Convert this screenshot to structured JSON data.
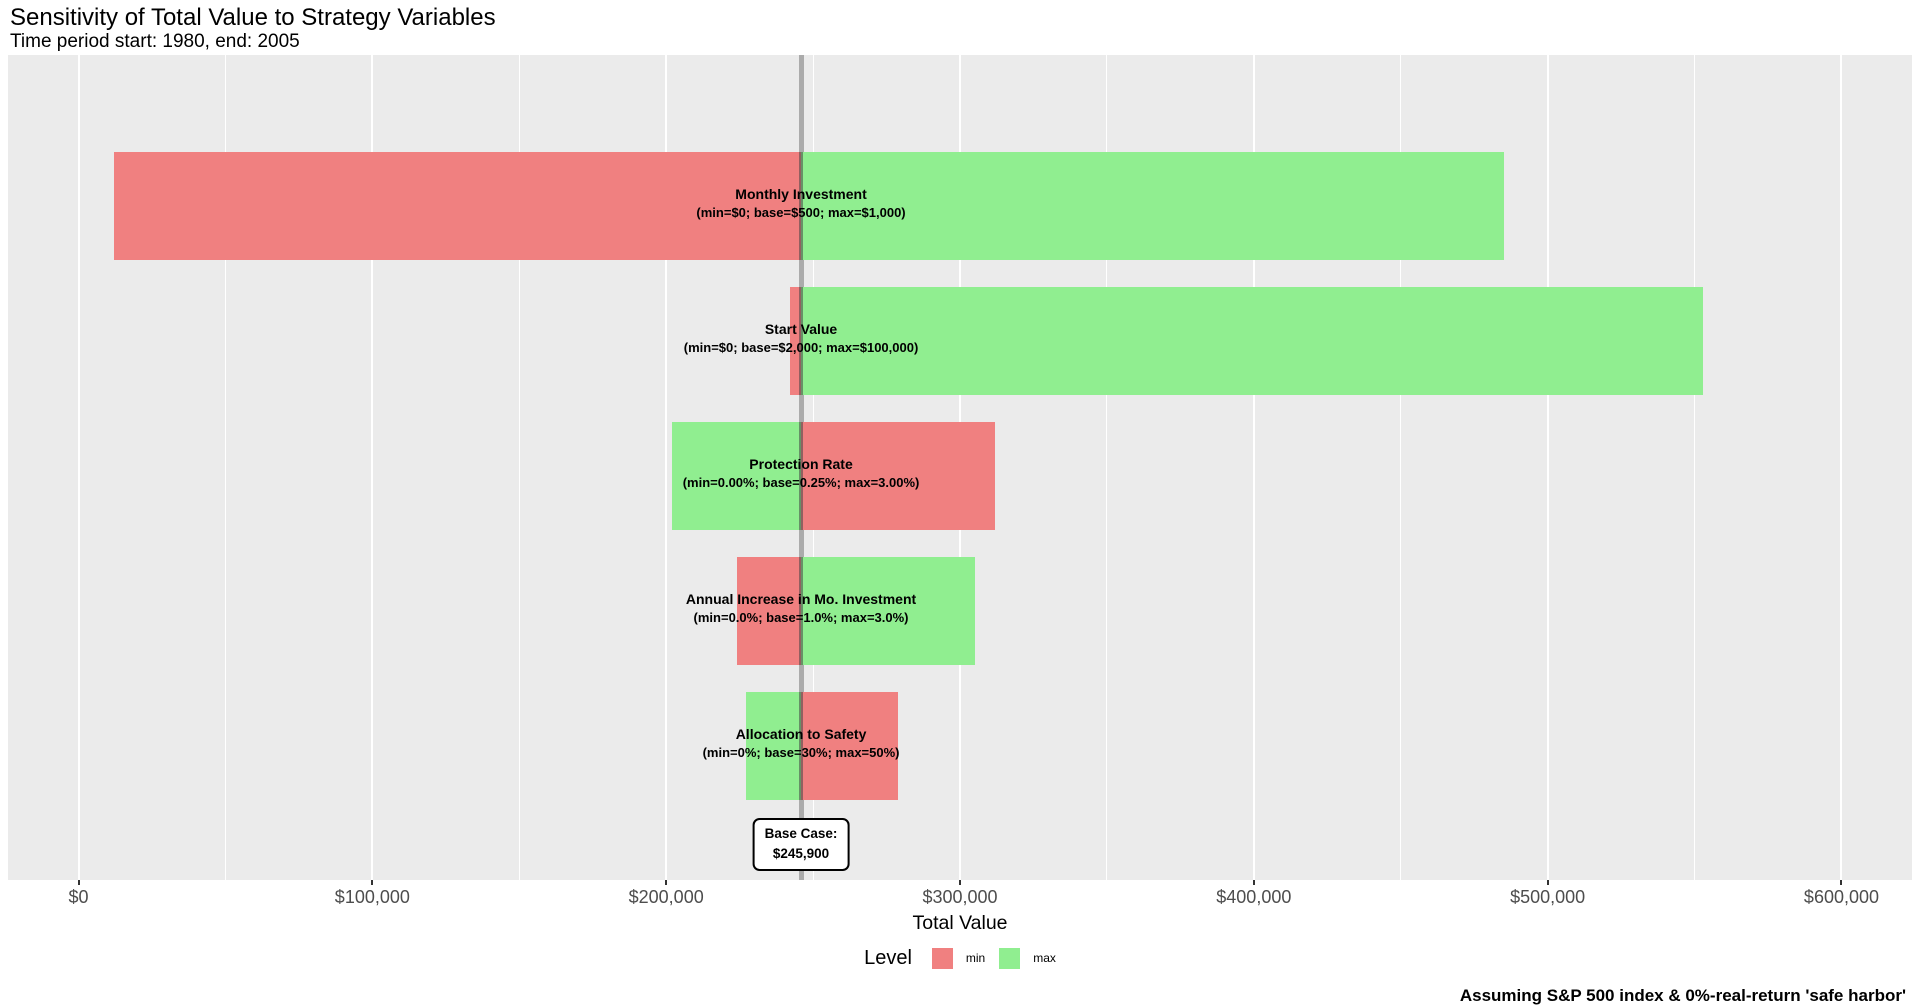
{
  "header": {
    "title": "Sensitivity of Total Value to Strategy Variables",
    "subtitle": "Time period start: 1980, end: 2005"
  },
  "chart_data": {
    "type": "bar",
    "subtype": "tornado-horizontal-diverging",
    "title": "Sensitivity of Total Value to Strategy Variables",
    "subtitle": "Time period start: 1980, end: 2005",
    "xlabel": "Total Value",
    "caption": "Assuming S&P 500 index & 0%-real-return 'safe harbor'",
    "xlim": [
      -24000,
      624000
    ],
    "grid": true,
    "x_major_ticks": [
      {
        "value": 0,
        "label": "$0"
      },
      {
        "value": 100000,
        "label": "$100,000"
      },
      {
        "value": 200000,
        "label": "$200,000"
      },
      {
        "value": 300000,
        "label": "$300,000"
      },
      {
        "value": 400000,
        "label": "$400,000"
      },
      {
        "value": 500000,
        "label": "$500,000"
      },
      {
        "value": 600000,
        "label": "$600,000"
      }
    ],
    "x_minor_ticks": [
      50000,
      150000,
      250000,
      350000,
      450000,
      550000
    ],
    "base_case": {
      "value": 245900,
      "label": "Base Case:",
      "value_label": "$245,900"
    },
    "rows": [
      {
        "variable": "Monthly Investment",
        "detail": "(min=$0; base=$500; max=$1,000)",
        "min_total": 12000,
        "max_total": 485000
      },
      {
        "variable": "Start Value",
        "detail": "(min=$0; base=$2,000; max=$100,000)",
        "min_total": 242000,
        "max_total": 553000
      },
      {
        "variable": "Protection Rate",
        "detail": "(min=0.00%; base=0.25%; max=3.00%)",
        "min_total": 312000,
        "max_total": 202000
      },
      {
        "variable": "Annual Increase in Mo. Investment",
        "detail": "(min=0.0%; base=1.0%; max=3.0%)",
        "min_total": 224000,
        "max_total": 305000
      },
      {
        "variable": "Allocation to Safety",
        "detail": "(min=0%; base=30%; max=50%)",
        "min_total": 279000,
        "max_total": 227000
      }
    ],
    "legend": {
      "title": "Level",
      "entries": [
        {
          "label": "min",
          "color": "#F08080"
        },
        {
          "label": "max",
          "color": "#90EE90"
        }
      ]
    },
    "colors": {
      "min": "#F08080",
      "max": "#90EE90",
      "panel_bg": "#EBEBEB",
      "grid": "#FFFFFF",
      "baseline": "#ABABAB",
      "divider": "rgba(70,70,70,0.55)"
    }
  }
}
